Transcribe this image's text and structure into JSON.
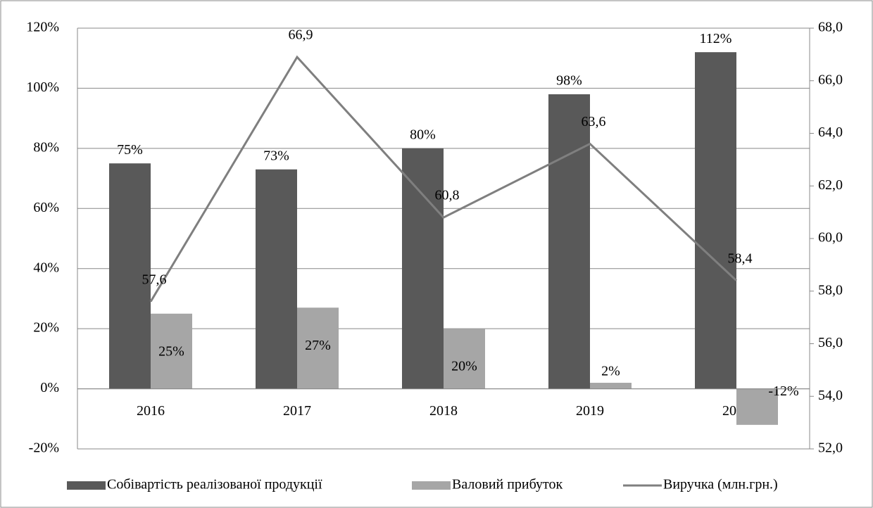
{
  "chart_data": {
    "type": "bar",
    "categories": [
      "2016",
      "2017",
      "2018",
      "2019",
      "2020"
    ],
    "series": [
      {
        "name": "Собівартість реалізованої продукції",
        "type": "bar",
        "color": "#595959",
        "values": [
          75,
          73,
          80,
          98,
          112
        ],
        "value_labels": [
          "75%",
          "73%",
          "80%",
          "98%",
          "112%"
        ]
      },
      {
        "name": "Валовий прибуток",
        "type": "bar",
        "color": "#a6a6a6",
        "values": [
          25,
          27,
          20,
          2,
          -12
        ],
        "value_labels": [
          "25%",
          "27%",
          "20%",
          "2%",
          "-12%"
        ]
      },
      {
        "name": "Виручка (млн.грн.)",
        "type": "line",
        "axis": "y2",
        "color": "#7f7f7f",
        "values": [
          57.6,
          66.9,
          60.8,
          63.6,
          58.4
        ],
        "value_labels": [
          "57,6",
          "66,9",
          "60,8",
          "63,6",
          "58,4"
        ]
      }
    ],
    "ylim": [
      -20,
      120
    ],
    "yticks": [
      {
        "value": -20,
        "label": "-20%"
      },
      {
        "value": 0,
        "label": "0%"
      },
      {
        "value": 20,
        "label": "20%"
      },
      {
        "value": 40,
        "label": "40%"
      },
      {
        "value": 60,
        "label": "60%"
      },
      {
        "value": 80,
        "label": "80%"
      },
      {
        "value": 100,
        "label": "100%"
      },
      {
        "value": 120,
        "label": "120%"
      }
    ],
    "y2lim": [
      52,
      68
    ],
    "y2ticks": [
      {
        "value": 52,
        "label": "52,0"
      },
      {
        "value": 54,
        "label": "54,0"
      },
      {
        "value": 56,
        "label": "56,0"
      },
      {
        "value": 58,
        "label": "58,0"
      },
      {
        "value": 60,
        "label": "60,0"
      },
      {
        "value": 62,
        "label": "62,0"
      },
      {
        "value": 64,
        "label": "64,0"
      },
      {
        "value": 66,
        "label": "66,0"
      },
      {
        "value": 68,
        "label": "68,0"
      }
    ],
    "grid": true,
    "legend": "bottom"
  }
}
